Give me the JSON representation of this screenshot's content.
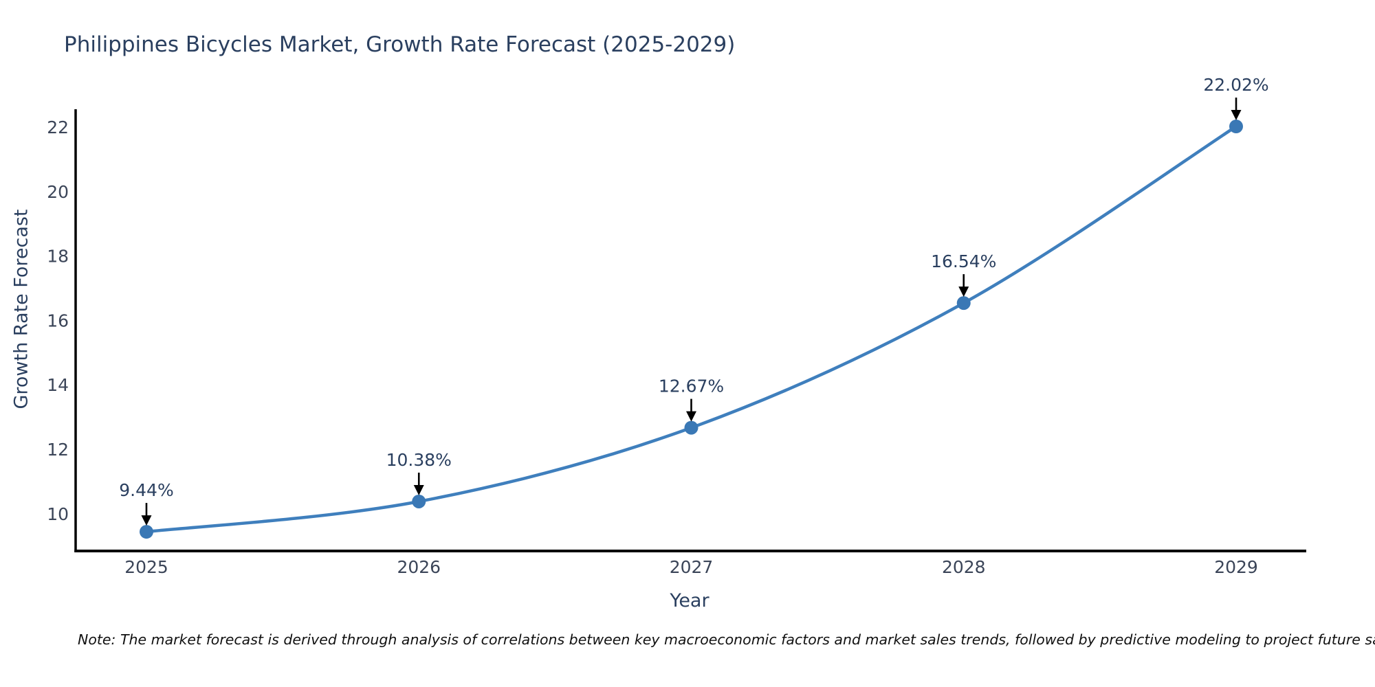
{
  "chart_data": {
    "type": "line",
    "title": "Philippines Bicycles Market, Growth Rate Forecast (2025-2029)",
    "xlabel": "Year",
    "ylabel": "Growth Rate Forecast",
    "x": [
      2025,
      2026,
      2027,
      2028,
      2029
    ],
    "values": [
      9.44,
      10.38,
      12.67,
      16.54,
      22.02
    ],
    "point_labels": [
      "9.44%",
      "10.38%",
      "12.67%",
      "16.54%",
      "22.02%"
    ],
    "yticks": [
      10,
      12,
      14,
      16,
      18,
      20,
      22
    ],
    "ylim": [
      8.85,
      22.55
    ],
    "xlim": [
      2024.74,
      2029.26
    ],
    "grid": false,
    "legend": "none",
    "line_color": "#3f7fbd",
    "marker_color": "#3a78b5",
    "axis_color": "#000000",
    "tick_color": "#3b4558",
    "label_color": "#2a3f5f",
    "arrow_color": "#000000"
  },
  "note": {
    "text": "Note: The market forecast is derived through analysis of correlations between key macroeconomic factors and market sales trends, followed by predictive modeling to project future sales"
  }
}
